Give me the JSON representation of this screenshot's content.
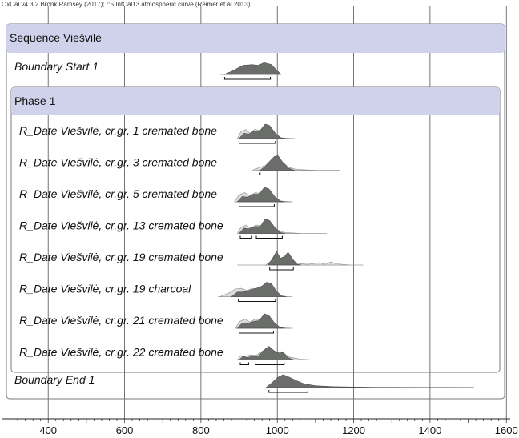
{
  "header": "OxCal v4.3.2 Bronk Ramsey (2017); r:5 IntCal13 atmospheric curve (Reimer et al 2013)",
  "colors": {
    "band": "#d0d2ec",
    "posterior": "#6b6d6b",
    "prior": "#dcdcdc",
    "prior_stroke": "#8a8a8a",
    "grid": "#505050",
    "frame": "#7a7a7a"
  },
  "chart_data": {
    "type": "area",
    "title": "",
    "xlabel": "",
    "ylabel": "",
    "xlim": [
      280,
      1610
    ],
    "xticks": [
      400,
      600,
      800,
      1000,
      1200,
      1400,
      1600
    ],
    "grid": true,
    "sequence_label": "Sequence Viešvilė",
    "phase_label": "Phase 1",
    "rows": [
      {
        "label": "Boundary Start 1",
        "kind": "boundary",
        "tail": [
          850,
          1010
        ],
        "posterior": [
          [
            860,
            0
          ],
          [
            880,
            0.2
          ],
          [
            910,
            0.6
          ],
          [
            935,
            0.65
          ],
          [
            950,
            0.6
          ],
          [
            965,
            0.78
          ],
          [
            985,
            0.65
          ],
          [
            1000,
            0.25
          ],
          [
            1010,
            0
          ]
        ],
        "ranges": [
          [
            862,
            982
          ]
        ]
      },
      {
        "label": "R_Date Viešvilė, cr.gr. 1 cremated bone",
        "kind": "rdate",
        "tail": [
          900,
          1045
        ],
        "prior": [
          [
            895,
            0
          ],
          [
            905,
            0.45
          ],
          [
            918,
            0.6
          ],
          [
            928,
            0.35
          ],
          [
            940,
            0.6
          ],
          [
            955,
            0.55
          ],
          [
            965,
            0.85
          ],
          [
            975,
            0.8
          ],
          [
            992,
            0.3
          ],
          [
            1010,
            0.05
          ],
          [
            1045,
            0
          ]
        ],
        "posterior": [
          [
            900,
            0
          ],
          [
            912,
            0.35
          ],
          [
            925,
            0.3
          ],
          [
            940,
            0.5
          ],
          [
            955,
            0.5
          ],
          [
            968,
            0.95
          ],
          [
            980,
            0.85
          ],
          [
            995,
            0.35
          ],
          [
            1010,
            0.05
          ],
          [
            1020,
            0
          ]
        ],
        "ranges": [
          [
            900,
            995
          ]
        ]
      },
      {
        "label": "R_Date Viešvilė, cr.gr. 3 cremated bone",
        "kind": "rdate",
        "tail": [
          945,
          1165
        ],
        "prior": [
          [
            935,
            0
          ],
          [
            950,
            0.15
          ],
          [
            968,
            0.3
          ],
          [
            980,
            0.55
          ],
          [
            992,
            0.7
          ],
          [
            1005,
            0.8
          ],
          [
            1015,
            0.5
          ],
          [
            1030,
            0.2
          ],
          [
            1050,
            0.05
          ],
          [
            1100,
            0
          ]
        ],
        "posterior": [
          [
            955,
            0
          ],
          [
            968,
            0.25
          ],
          [
            980,
            0.6
          ],
          [
            992,
            0.9
          ],
          [
            1002,
            0.95
          ],
          [
            1012,
            0.6
          ],
          [
            1028,
            0.15
          ],
          [
            1045,
            0
          ]
        ],
        "ranges": [
          [
            955,
            1028
          ]
        ]
      },
      {
        "label": "R_Date Viešvilė, cr.gr. 5 cremated bone",
        "kind": "rdate",
        "tail": [
          890,
          1040
        ],
        "prior": [
          [
            888,
            0
          ],
          [
            900,
            0.45
          ],
          [
            915,
            0.6
          ],
          [
            928,
            0.4
          ],
          [
            942,
            0.6
          ],
          [
            955,
            0.55
          ],
          [
            965,
            0.85
          ],
          [
            975,
            0.8
          ],
          [
            992,
            0.3
          ],
          [
            1010,
            0.05
          ],
          [
            1040,
            0
          ]
        ],
        "posterior": [
          [
            895,
            0
          ],
          [
            908,
            0.35
          ],
          [
            922,
            0.3
          ],
          [
            938,
            0.5
          ],
          [
            952,
            0.5
          ],
          [
            966,
            0.95
          ],
          [
            978,
            0.85
          ],
          [
            993,
            0.35
          ],
          [
            1008,
            0.05
          ],
          [
            1018,
            0
          ]
        ],
        "ranges": [
          [
            900,
            992
          ]
        ]
      },
      {
        "label": "R_Date Viešvilė, cr.gr. 13 cremated bone",
        "kind": "rdate",
        "tail": [
          900,
          1130
        ],
        "prior": [
          [
            895,
            0
          ],
          [
            905,
            0.4
          ],
          [
            918,
            0.55
          ],
          [
            930,
            0.35
          ],
          [
            945,
            0.55
          ],
          [
            958,
            0.5
          ],
          [
            968,
            0.8
          ],
          [
            980,
            0.75
          ],
          [
            995,
            0.3
          ],
          [
            1015,
            0.08
          ],
          [
            1060,
            0
          ]
        ],
        "posterior": [
          [
            900,
            0
          ],
          [
            912,
            0.35
          ],
          [
            925,
            0.3
          ],
          [
            940,
            0.45
          ],
          [
            955,
            0.45
          ],
          [
            968,
            0.95
          ],
          [
            980,
            0.85
          ],
          [
            995,
            0.35
          ],
          [
            1010,
            0.05
          ],
          [
            1020,
            0
          ]
        ],
        "ranges": [
          [
            903,
            933
          ],
          [
            945,
            1013
          ]
        ]
      },
      {
        "label": "R_Date Viešvilė, cr.gr. 19 cremated bone",
        "kind": "rdate",
        "tail": [
          895,
          1225
        ],
        "prior": [
          [
            970,
            0
          ],
          [
            985,
            0.3
          ],
          [
            1000,
            0.55
          ],
          [
            1012,
            0.3
          ],
          [
            1025,
            0.5
          ],
          [
            1040,
            0.3
          ],
          [
            1055,
            0.1
          ],
          [
            1080,
            0.05
          ],
          [
            1110,
            0.15
          ],
          [
            1125,
            0.05
          ],
          [
            1140,
            0.2
          ],
          [
            1155,
            0.08
          ],
          [
            1190,
            0
          ]
        ],
        "posterior": [
          [
            975,
            0
          ],
          [
            985,
            0.35
          ],
          [
            998,
            0.9
          ],
          [
            1008,
            0.45
          ],
          [
            1018,
            0.55
          ],
          [
            1028,
            0.85
          ],
          [
            1040,
            0.4
          ],
          [
            1052,
            0.05
          ],
          [
            1062,
            0
          ]
        ],
        "ranges": [
          [
            980,
            1042
          ]
        ]
      },
      {
        "label": "R_Date Viešvilė, cr.gr. 19 charcoal",
        "kind": "rdate",
        "tail": [
          845,
          1040
        ],
        "prior": [
          [
            850,
            0
          ],
          [
            870,
            0.2
          ],
          [
            890,
            0.5
          ],
          [
            905,
            0.55
          ],
          [
            920,
            0.4
          ],
          [
            935,
            0.55
          ],
          [
            950,
            0.5
          ],
          [
            962,
            0.75
          ],
          [
            975,
            0.7
          ],
          [
            990,
            0.3
          ],
          [
            1005,
            0.05
          ],
          [
            1030,
            0
          ]
        ],
        "posterior": [
          [
            880,
            0
          ],
          [
            895,
            0.3
          ],
          [
            910,
            0.3
          ],
          [
            925,
            0.4
          ],
          [
            945,
            0.55
          ],
          [
            960,
            0.7
          ],
          [
            972,
            0.95
          ],
          [
            985,
            0.85
          ],
          [
            998,
            0.35
          ],
          [
            1012,
            0.05
          ],
          [
            1022,
            0
          ]
        ],
        "ranges": [
          [
            898,
            995
          ]
        ]
      },
      {
        "label": "R_Date Viešvilė, cr.gr. 21 cremated bone",
        "kind": "rdate",
        "tail": [
          892,
          1040
        ],
        "prior": [
          [
            890,
            0
          ],
          [
            902,
            0.45
          ],
          [
            916,
            0.6
          ],
          [
            928,
            0.4
          ],
          [
            942,
            0.6
          ],
          [
            955,
            0.55
          ],
          [
            965,
            0.8
          ],
          [
            976,
            0.75
          ],
          [
            992,
            0.3
          ],
          [
            1008,
            0.05
          ],
          [
            1035,
            0
          ]
        ],
        "posterior": [
          [
            895,
            0
          ],
          [
            908,
            0.35
          ],
          [
            922,
            0.3
          ],
          [
            938,
            0.45
          ],
          [
            952,
            0.5
          ],
          [
            966,
            0.95
          ],
          [
            978,
            0.85
          ],
          [
            993,
            0.35
          ],
          [
            1008,
            0.05
          ],
          [
            1018,
            0
          ]
        ],
        "ranges": [
          [
            900,
            990
          ]
        ]
      },
      {
        "label": "R_Date Viešvilė, cr.gr. 22 cremated bone",
        "kind": "rdate",
        "tail": [
          900,
          1165
        ],
        "prior": [
          [
            895,
            0
          ],
          [
            905,
            0.3
          ],
          [
            915,
            0.2
          ],
          [
            930,
            0.35
          ],
          [
            945,
            0.3
          ],
          [
            958,
            0.55
          ],
          [
            972,
            0.7
          ],
          [
            985,
            0.6
          ],
          [
            1000,
            0.5
          ],
          [
            1012,
            0.55
          ],
          [
            1030,
            0.2
          ],
          [
            1060,
            0.05
          ],
          [
            1100,
            0
          ]
        ],
        "posterior": [
          [
            900,
            0
          ],
          [
            910,
            0.25
          ],
          [
            920,
            0.15
          ],
          [
            935,
            0.25
          ],
          [
            950,
            0.25
          ],
          [
            965,
            0.65
          ],
          [
            978,
            0.9
          ],
          [
            992,
            0.6
          ],
          [
            1005,
            0.45
          ],
          [
            1015,
            0.5
          ],
          [
            1028,
            0.15
          ],
          [
            1045,
            0
          ]
        ],
        "ranges": [
          [
            903,
            925
          ],
          [
            942,
            1018
          ]
        ]
      },
      {
        "label": "Boundary End 1",
        "kind": "boundary",
        "tail": [
          970,
          1515
        ],
        "posterior": [
          [
            970,
            0
          ],
          [
            985,
            0.3
          ],
          [
            1000,
            0.65
          ],
          [
            1015,
            0.85
          ],
          [
            1030,
            0.7
          ],
          [
            1050,
            0.45
          ],
          [
            1070,
            0.25
          ],
          [
            1100,
            0.12
          ],
          [
            1150,
            0.06
          ],
          [
            1250,
            0.02
          ],
          [
            1515,
            0
          ]
        ],
        "ranges": [
          [
            978,
            1080
          ]
        ]
      }
    ]
  }
}
